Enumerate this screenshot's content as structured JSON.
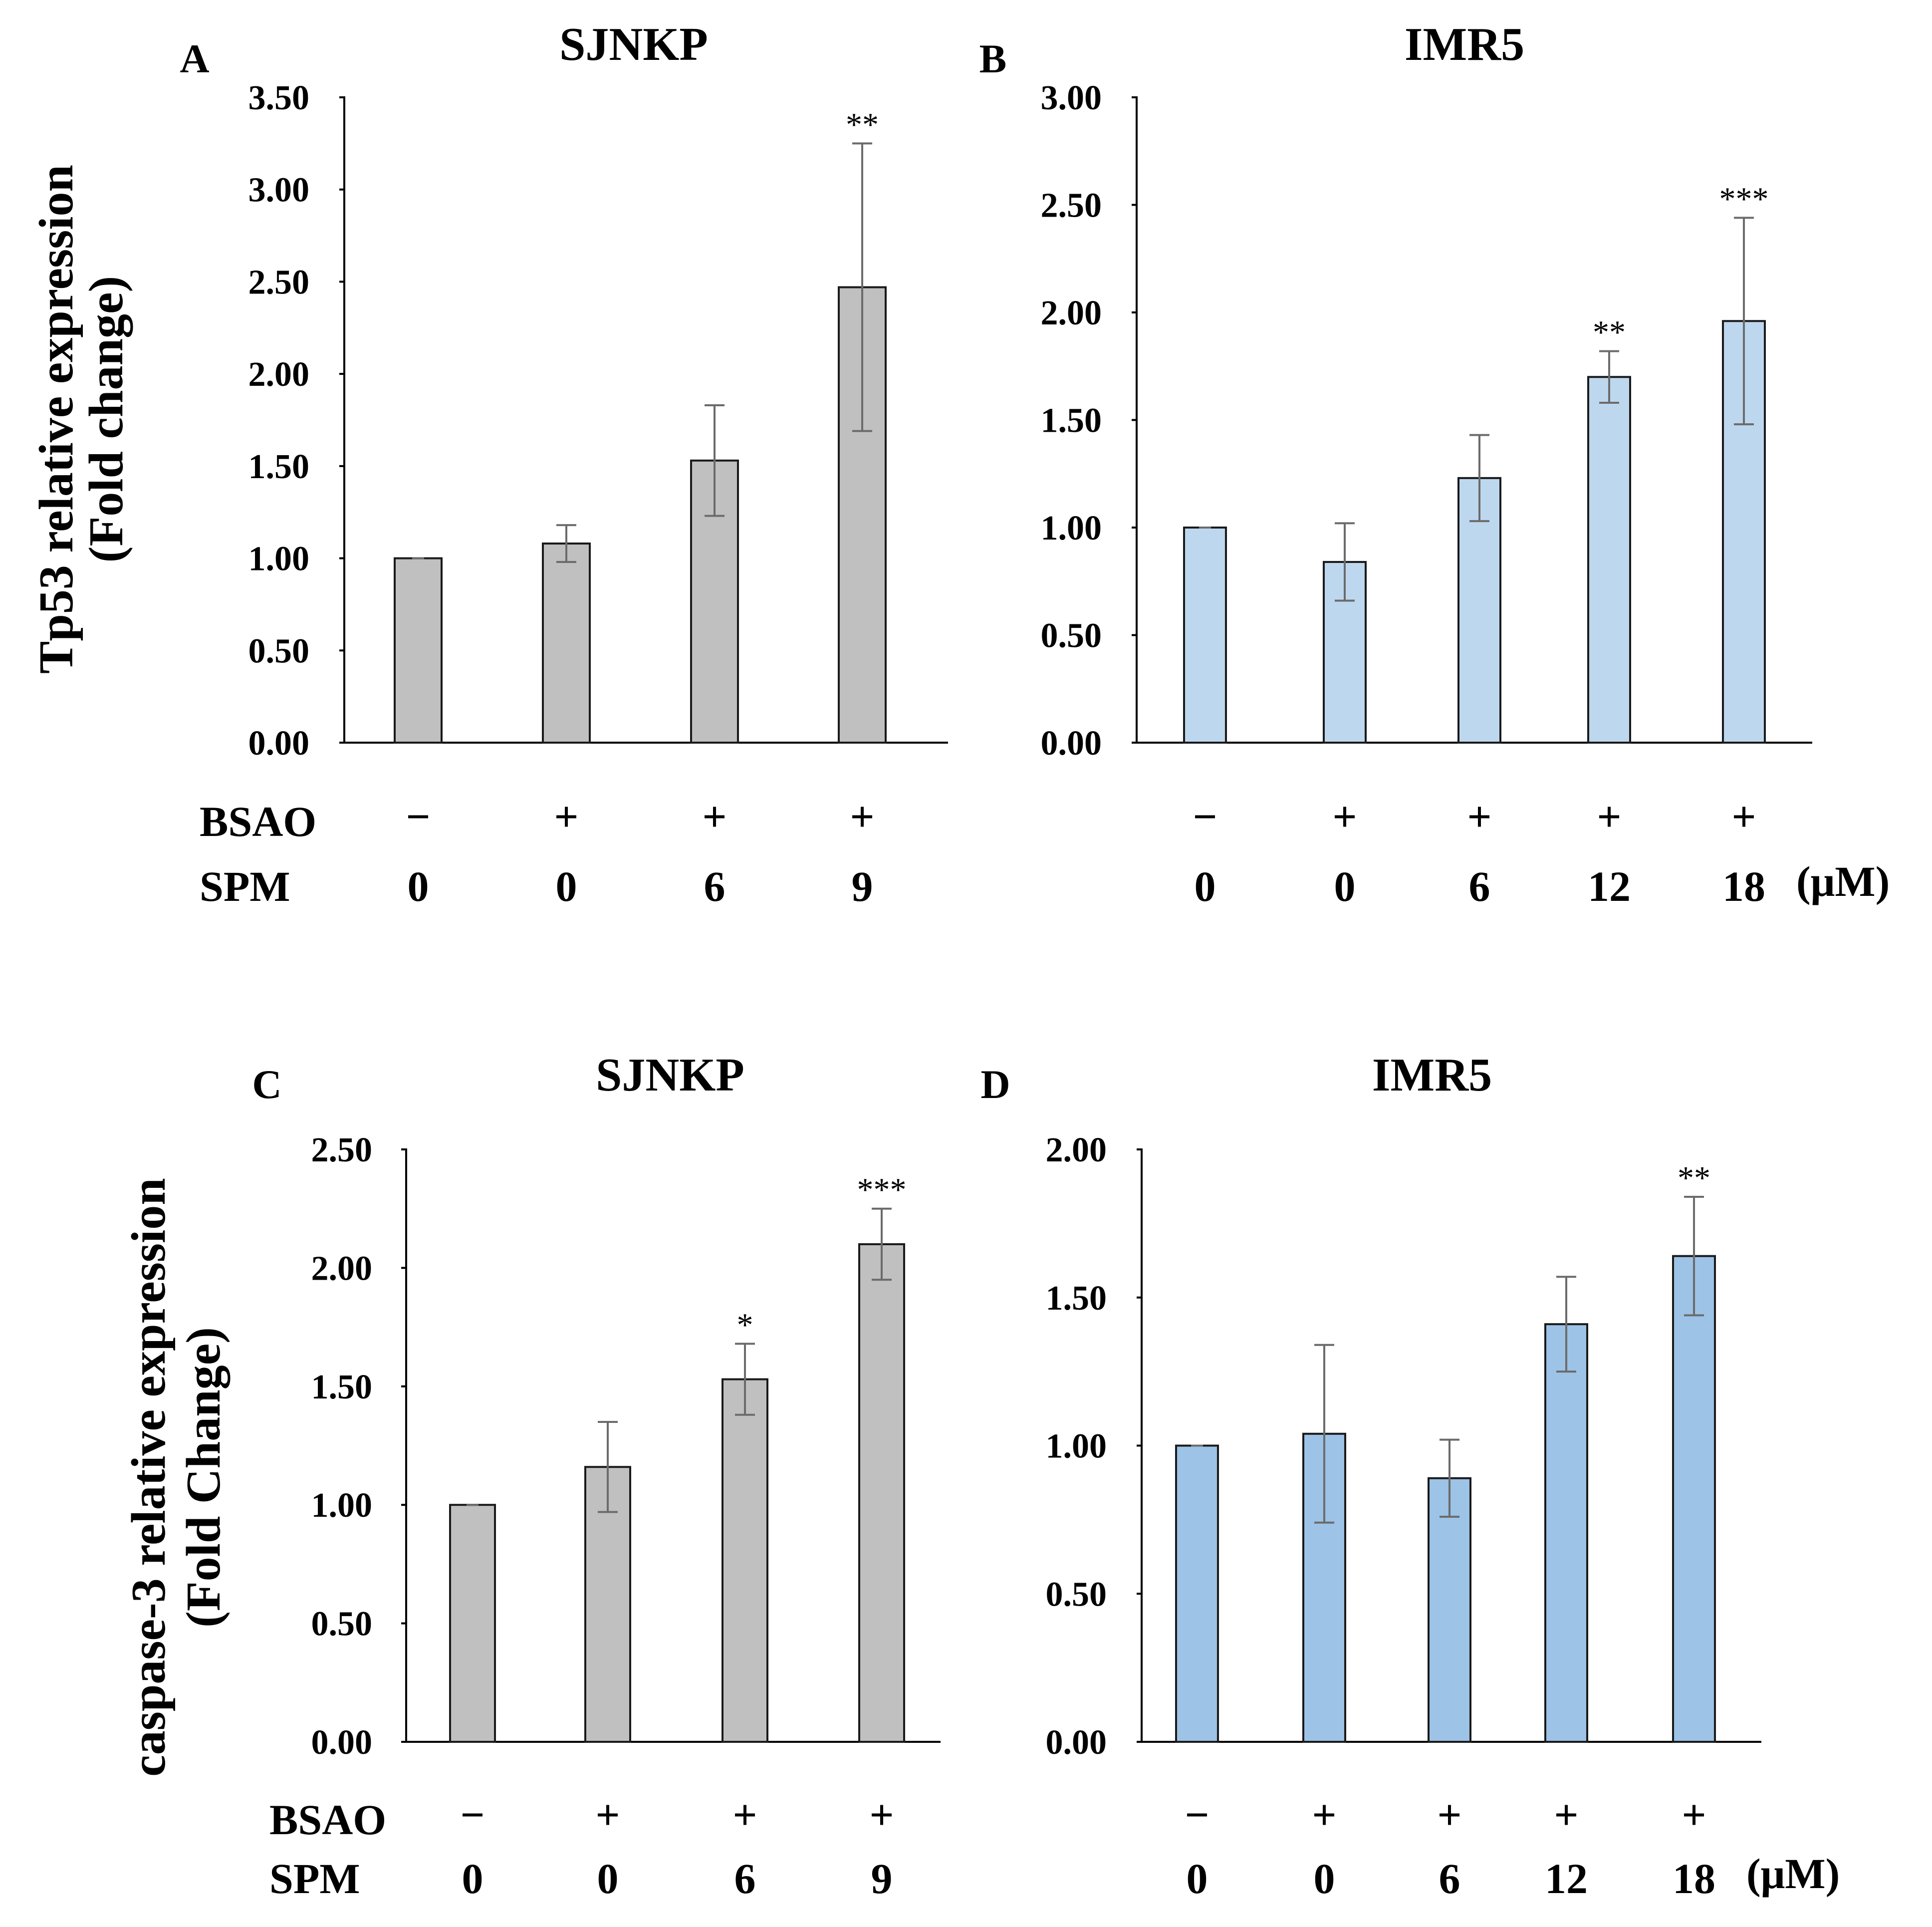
{
  "chart_data": [
    {
      "type": "bar",
      "panel": "A",
      "title": "SJNKP",
      "ylabel": "Tp53 relative expression\n(Fold change)",
      "ylim": [
        0,
        3.5
      ],
      "yticks": [
        "0.00",
        "0.50",
        "1.00",
        "1.50",
        "2.00",
        "2.50",
        "3.00",
        "3.50"
      ],
      "bar_color": "#c0c0c0",
      "rows": {
        "bsao": "BSAO",
        "spm": "SPM"
      },
      "unit": "",
      "categories": [
        {
          "bsao": "−",
          "spm": "0"
        },
        {
          "bsao": "+",
          "spm": "0"
        },
        {
          "bsao": "+",
          "spm": "6"
        },
        {
          "bsao": "+",
          "spm": "9"
        }
      ],
      "values": [
        1.0,
        1.08,
        1.53,
        2.47
      ],
      "errors": [
        0.0,
        0.1,
        0.3,
        0.78
      ],
      "significance": [
        "",
        "",
        "",
        "**"
      ]
    },
    {
      "type": "bar",
      "panel": "B",
      "title": "IMR5",
      "ylabel": "",
      "ylim": [
        0,
        3.0
      ],
      "yticks": [
        "0.00",
        "0.50",
        "1.00",
        "1.50",
        "2.00",
        "2.50",
        "3.00"
      ],
      "bar_color": "#bdd7ee",
      "rows": {
        "bsao": "",
        "spm": ""
      },
      "unit": "(μM)",
      "categories": [
        {
          "bsao": "−",
          "spm": "0"
        },
        {
          "bsao": "+",
          "spm": "0"
        },
        {
          "bsao": "+",
          "spm": "6"
        },
        {
          "bsao": "+",
          "spm": "12"
        },
        {
          "bsao": "+",
          "spm": "18"
        }
      ],
      "values": [
        1.0,
        0.84,
        1.23,
        1.7,
        1.96
      ],
      "errors": [
        0.0,
        0.18,
        0.2,
        0.12,
        0.48
      ],
      "significance": [
        "",
        "",
        "",
        "**",
        "***"
      ]
    },
    {
      "type": "bar",
      "panel": "C",
      "title": "SJNKP",
      "ylabel": "caspase-3 relative expression\n(Fold Change)",
      "ylim": [
        0,
        2.5
      ],
      "yticks": [
        "0.00",
        "0.50",
        "1.00",
        "1.50",
        "2.00",
        "2.50"
      ],
      "bar_color": "#c0c0c0",
      "rows": {
        "bsao": "BSAO",
        "spm": "SPM"
      },
      "unit": "",
      "categories": [
        {
          "bsao": "−",
          "spm": "0"
        },
        {
          "bsao": "+",
          "spm": "0"
        },
        {
          "bsao": "+",
          "spm": "6"
        },
        {
          "bsao": "+",
          "spm": "9"
        }
      ],
      "values": [
        1.0,
        1.16,
        1.53,
        2.1
      ],
      "errors": [
        0.0,
        0.19,
        0.15,
        0.15
      ],
      "significance": [
        "",
        "",
        "*",
        "***"
      ]
    },
    {
      "type": "bar",
      "panel": "D",
      "title": "IMR5",
      "ylabel": "",
      "ylim": [
        0,
        2.0
      ],
      "yticks": [
        "0.00",
        "0.50",
        "1.00",
        "1.50",
        "2.00"
      ],
      "bar_color": "#9dc3e6",
      "rows": {
        "bsao": "",
        "spm": ""
      },
      "unit": "(μM)",
      "categories": [
        {
          "bsao": "−",
          "spm": "0"
        },
        {
          "bsao": "+",
          "spm": "0"
        },
        {
          "bsao": "+",
          "spm": "6"
        },
        {
          "bsao": "+",
          "spm": "12"
        },
        {
          "bsao": "+",
          "spm": "18"
        }
      ],
      "values": [
        1.0,
        1.04,
        0.89,
        1.41,
        1.64
      ],
      "errors": [
        0.0,
        0.3,
        0.13,
        0.16,
        0.2
      ],
      "significance": [
        "",
        "",
        "",
        "",
        "**"
      ]
    }
  ]
}
